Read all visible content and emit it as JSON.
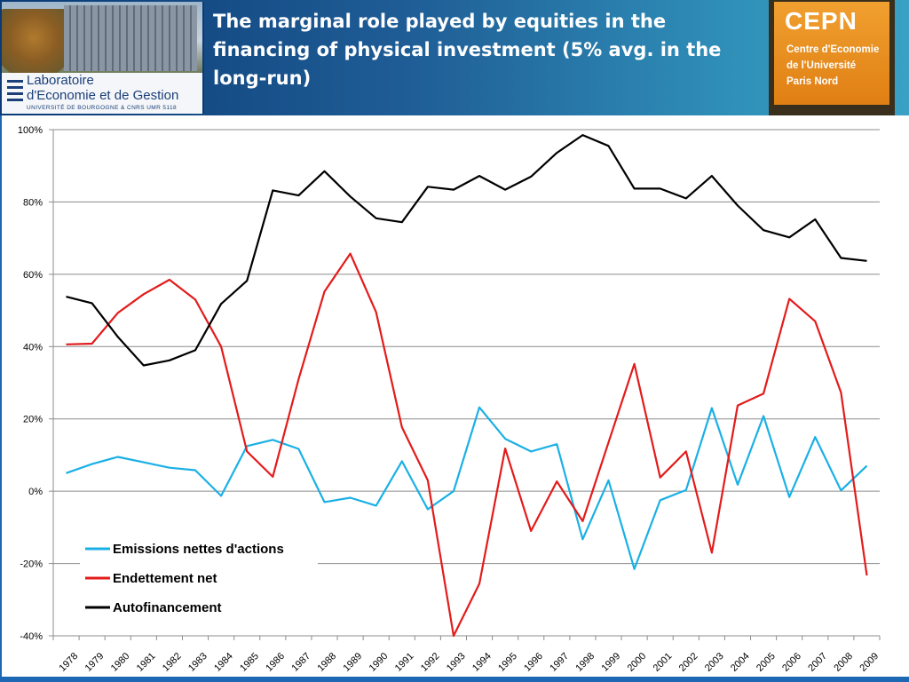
{
  "header": {
    "title": "The marginal role played by equities in the financing of physical investment (5% avg. in the long-run)",
    "left_logo": {
      "name_line1": "Laboratoire",
      "name_line2": "d'Economie et de Gestion",
      "subtitle": "UNIVERSITÉ DE BOURGOGNE & CNRS UMR 5118"
    },
    "right_logo": {
      "title": "CEPN",
      "line1": "Centre d'Economie",
      "line2": "de l'Université",
      "line3": "Paris Nord"
    }
  },
  "colors": {
    "header_start": "#0b3a75",
    "header_end": "#3aa0c4",
    "emissions": "#1ab0e6",
    "endettement": "#e31b1b",
    "autofinancement": "#000000",
    "cepn_orange": "#e88a20"
  },
  "chart_data": {
    "type": "line",
    "title": "",
    "xlabel": "",
    "ylabel": "",
    "ylim": [
      -40,
      100
    ],
    "yticks": [
      -40,
      -20,
      0,
      20,
      40,
      60,
      80,
      100
    ],
    "ytick_labels": [
      "-40%",
      "-20%",
      "0%",
      "20%",
      "40%",
      "60%",
      "80%",
      "100%"
    ],
    "grid": true,
    "legend_position": "bottom-left",
    "x": [
      "1978",
      "1979",
      "1980",
      "1981",
      "1982",
      "1983",
      "1984",
      "1985",
      "1986",
      "1987",
      "1988",
      "1989",
      "1990",
      "1991",
      "1992",
      "1993",
      "1994",
      "1995",
      "1996",
      "1997",
      "1998",
      "1999",
      "2000",
      "2001",
      "2002",
      "2003",
      "2004",
      "2005",
      "2006",
      "2007",
      "2008",
      "2009"
    ],
    "series": [
      {
        "name": "Emissions nettes d'actions",
        "color_key": "emissions",
        "values": [
          5,
          7.5,
          9.5,
          8,
          6.5,
          5.8,
          -1.3,
          12.5,
          14.2,
          11.7,
          -3,
          -1.8,
          -4,
          8.3,
          -5,
          0,
          23.2,
          14.5,
          11,
          13,
          -13.3,
          3,
          -21.5,
          -2.5,
          0.3,
          23,
          1.8,
          20.8,
          -1.6,
          15,
          0.2,
          7
        ]
      },
      {
        "name": "Endettement net",
        "color_key": "endettement",
        "values": [
          40.6,
          40.8,
          49.3,
          54.5,
          58.5,
          53,
          40,
          11,
          4,
          31,
          55.2,
          65.7,
          49.5,
          17.7,
          3,
          -40,
          -25.6,
          11.8,
          -11,
          2.7,
          -8.3,
          13.5,
          35.2,
          3.8,
          11,
          -17,
          23.7,
          27,
          53.2,
          47,
          27.3,
          -23.3
        ]
      },
      {
        "name": "Autofinancement",
        "color_key": "autofinancement",
        "values": [
          53.8,
          52,
          42.7,
          34.8,
          36.2,
          39,
          51.8,
          58.2,
          83.2,
          81.8,
          88.5,
          81.5,
          75.5,
          74.4,
          84.2,
          83.4,
          87.2,
          83.4,
          87,
          93.6,
          98.5,
          95.5,
          83.7,
          83.7,
          81,
          87.2,
          79,
          72.2,
          70.2,
          75.2,
          64.5,
          63.7
        ]
      }
    ]
  }
}
